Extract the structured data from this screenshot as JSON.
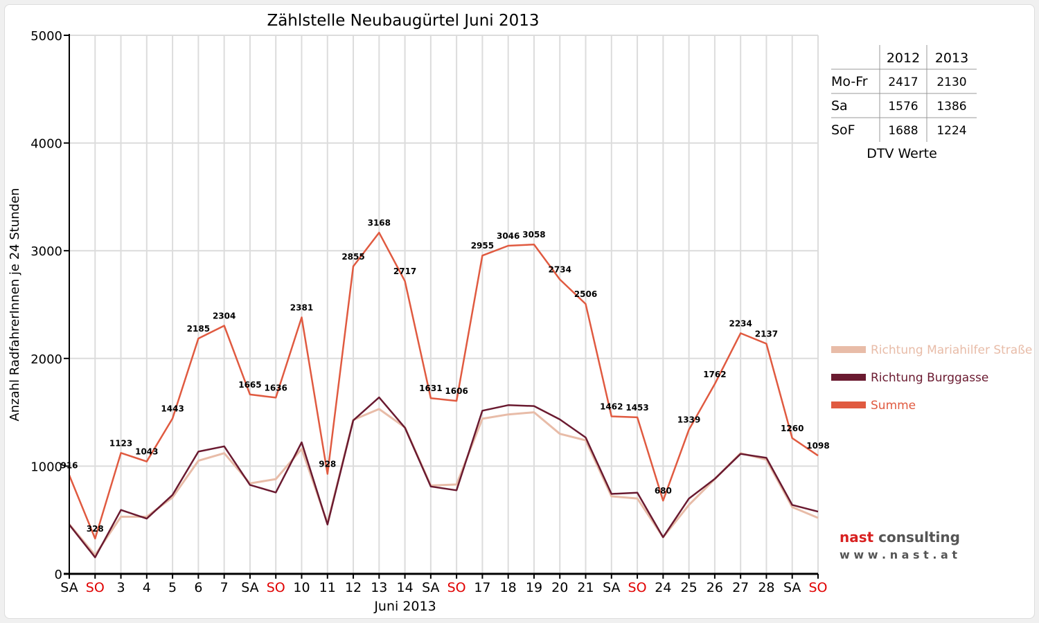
{
  "chart_data": {
    "type": "line",
    "title": "Zählstelle Neubaugürtel Juni 2013",
    "xlabel": "Juni 2013",
    "ylabel": "Anzahl RadfahrerInnen je 24 Stunden",
    "ylim": [
      0,
      5000
    ],
    "yticks": [
      "0",
      "1000",
      "2000",
      "3000",
      "4000",
      "5000"
    ],
    "grid": true,
    "legend_position": "right",
    "categories": [
      "SA",
      "SO",
      "3",
      "4",
      "5",
      "6",
      "7",
      "SA",
      "SO",
      "10",
      "11",
      "12",
      "13",
      "14",
      "SA",
      "SO",
      "17",
      "18",
      "19",
      "20",
      "21",
      "SA",
      "SO",
      "24",
      "25",
      "26",
      "27",
      "28",
      "SA",
      "SO"
    ],
    "category_colors": [
      "#000000",
      "#e00000",
      "#000000",
      "#000000",
      "#000000",
      "#000000",
      "#000000",
      "#000000",
      "#e00000",
      "#000000",
      "#000000",
      "#000000",
      "#000000",
      "#000000",
      "#000000",
      "#e00000",
      "#000000",
      "#000000",
      "#000000",
      "#000000",
      "#000000",
      "#000000",
      "#e00000",
      "#000000",
      "#000000",
      "#000000",
      "#000000",
      "#000000",
      "#000000",
      "#e00000"
    ],
    "series": [
      {
        "name": "Richtung Mariahilfer Straße",
        "color": "#e8bca8",
        "values": [
          460,
          175,
          530,
          530,
          710,
          1050,
          1120,
          840,
          880,
          1160,
          470,
          1430,
          1530,
          1360,
          820,
          830,
          1440,
          1480,
          1500,
          1300,
          1240,
          720,
          700,
          340,
          640,
          880,
          1120,
          1060,
          620,
          520
        ]
      },
      {
        "name": "Richtung Burggasse",
        "color": "#6a1a30",
        "values": [
          456,
          153,
          593,
          513,
          733,
          1135,
          1184,
          825,
          756,
          1221,
          458,
          1425,
          1638,
          1357,
          811,
          776,
          1515,
          1566,
          1558,
          1434,
          1266,
          742,
          753,
          340,
          699,
          882,
          1114,
          1077,
          640,
          578
        ]
      },
      {
        "name": "Summe",
        "color": "#e05a40",
        "values": [
          916,
          328,
          1123,
          1043,
          1443,
          2185,
          2304,
          1665,
          1636,
          2381,
          928,
          2855,
          3168,
          2717,
          1631,
          1606,
          2955,
          3046,
          3058,
          2734,
          2506,
          1462,
          1453,
          680,
          1339,
          1762,
          2234,
          2137,
          1260,
          1098
        ]
      }
    ],
    "data_labels": [
      "916",
      "328",
      "1123",
      "1043",
      "1443",
      "2185",
      "2304",
      "1665",
      "1636",
      "2381",
      "928",
      "2855",
      "3168",
      "2717",
      "1631",
      "1606",
      "2955",
      "3046",
      "3058",
      "2734",
      "2506",
      "1462",
      "1453",
      "680",
      "1339",
      "1762",
      "2234",
      "2137",
      "1260",
      "1098"
    ]
  },
  "dtv_table": {
    "headers": [
      "",
      "2012",
      "2013"
    ],
    "rows": [
      [
        "Mo-Fr",
        "2417",
        "2130"
      ],
      [
        "Sa",
        "1576",
        "1386"
      ],
      [
        "SoF",
        "1688",
        "1224"
      ]
    ],
    "caption": "DTV Werte"
  },
  "logo": {
    "name_part1": "nast",
    "name_part2": " consulting",
    "url": "w w w . n a s t . a t",
    "accent_color": "#d82020",
    "text_color": "#555555"
  }
}
